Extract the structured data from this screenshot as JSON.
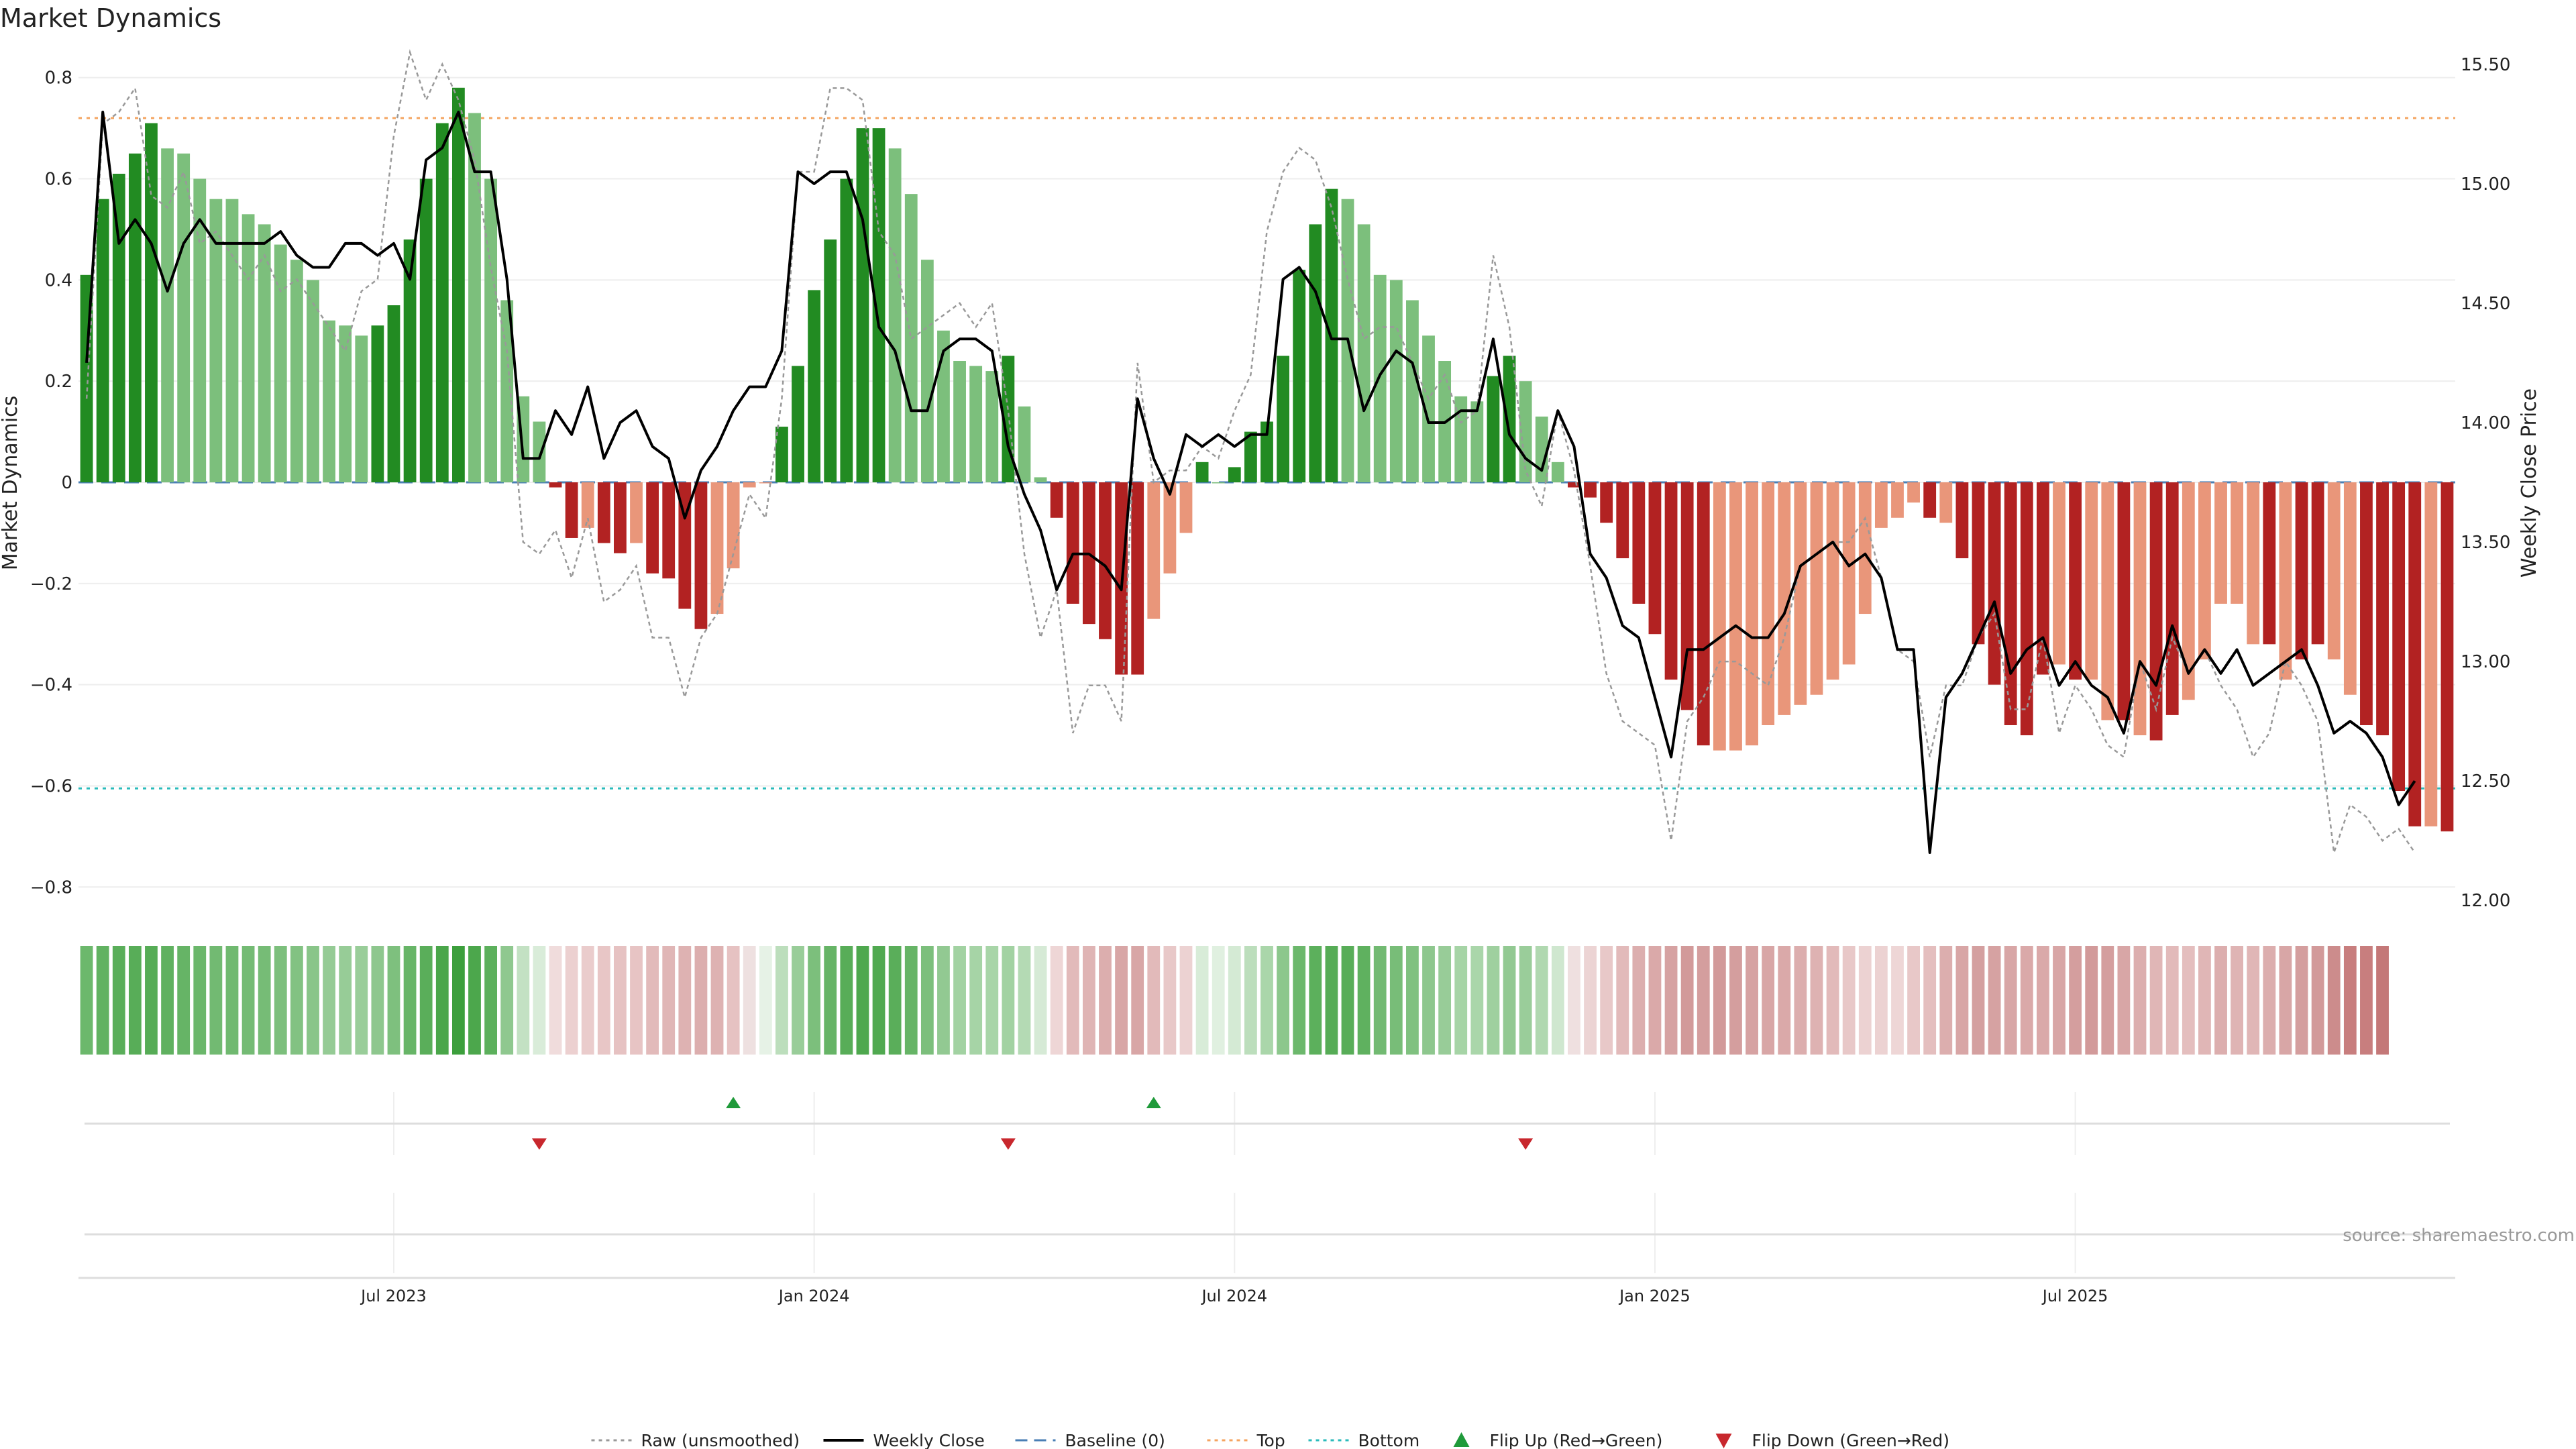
{
  "chart_data": {
    "type": "bar",
    "title": "Market Dynamics",
    "ylabel": "Market Dynamics",
    "y2label": "Weekly Close Price",
    "ylim": [
      -0.85,
      0.85
    ],
    "y2lim": [
      11.95,
      15.55
    ],
    "yticks": [
      {
        "v": 0.8,
        "t": "0.8"
      },
      {
        "v": 0.6,
        "t": "0.6"
      },
      {
        "v": 0.4,
        "t": "0.4"
      },
      {
        "v": 0.2,
        "t": "0.2"
      },
      {
        "v": 0,
        "t": "0"
      },
      {
        "v": -0.2,
        "t": "−0.2"
      },
      {
        "v": -0.4,
        "t": "−0.4"
      },
      {
        "v": -0.6,
        "t": "−0.6"
      },
      {
        "v": -0.8,
        "t": "−0.8"
      }
    ],
    "y2ticks": [
      {
        "v": 15.5,
        "t": "15.50"
      },
      {
        "v": 15.0,
        "t": "15.00"
      },
      {
        "v": 14.5,
        "t": "14.50"
      },
      {
        "v": 14.0,
        "t": "14.00"
      },
      {
        "v": 13.5,
        "t": "13.50"
      },
      {
        "v": 13.0,
        "t": "13.00"
      },
      {
        "v": 12.5,
        "t": "12.50"
      },
      {
        "v": 12.0,
        "t": "12.00"
      }
    ],
    "xticks": [
      {
        "i": 19.5,
        "t": "Jul 2023"
      },
      {
        "i": 45.5,
        "t": "Jan 2024"
      },
      {
        "i": 71.5,
        "t": "Jul 2024"
      },
      {
        "i": 97.5,
        "t": "Jan 2025"
      },
      {
        "i": 123.5,
        "t": "Jul 2025"
      }
    ],
    "top_level": 0.72,
    "bottom_level": -0.605,
    "baseline": 0,
    "momentum": [
      0.41,
      0.56,
      0.61,
      0.65,
      0.71,
      0.66,
      0.65,
      0.6,
      0.56,
      0.56,
      0.53,
      0.51,
      0.47,
      0.44,
      0.4,
      0.32,
      0.31,
      0.29,
      0.31,
      0.35,
      0.48,
      0.6,
      0.71,
      0.78,
      0.73,
      0.6,
      0.36,
      0.17,
      0.12,
      -0.01,
      -0.11,
      -0.09,
      -0.12,
      -0.14,
      -0.12,
      -0.18,
      -0.19,
      -0.25,
      -0.29,
      -0.26,
      -0.17,
      -0.01,
      0.0,
      0.11,
      0.23,
      0.38,
      0.48,
      0.6,
      0.7,
      0.7,
      0.66,
      0.57,
      0.44,
      0.3,
      0.24,
      0.23,
      0.22,
      0.25,
      0.15,
      0.01,
      -0.07,
      -0.24,
      -0.28,
      -0.31,
      -0.38,
      -0.38,
      -0.27,
      -0.18,
      -0.1,
      0.04,
      0.0,
      0.03,
      0.1,
      0.12,
      0.25,
      0.42,
      0.51,
      0.58,
      0.56,
      0.51,
      0.41,
      0.4,
      0.36,
      0.29,
      0.24,
      0.17,
      0.16,
      0.21,
      0.25,
      0.2,
      0.13,
      0.04,
      -0.01,
      -0.03,
      -0.08,
      -0.15,
      -0.24,
      -0.3,
      -0.39,
      -0.45,
      -0.52,
      -0.53,
      -0.53,
      -0.52,
      -0.48,
      -0.46,
      -0.44,
      -0.42,
      -0.39,
      -0.36,
      -0.26,
      -0.09,
      -0.07,
      -0.04,
      -0.07,
      -0.08,
      -0.15,
      -0.32,
      -0.4,
      -0.48,
      -0.5,
      -0.38,
      -0.36,
      -0.39,
      -0.39,
      -0.47,
      -0.47,
      -0.5,
      -0.51,
      -0.46,
      -0.43,
      -0.35,
      -0.24,
      -0.24,
      -0.32,
      -0.32,
      -0.39,
      -0.35,
      -0.32,
      -0.35,
      -0.42,
      -0.48,
      -0.5,
      -0.61,
      -0.68,
      -0.68,
      -0.69
    ],
    "colors": [
      "#228b22",
      "#228b22",
      "#228b22",
      "#228b22",
      "#228b22",
      "#7cbf7c",
      "#7cbf7c",
      "#7cbf7c",
      "#7cbf7c",
      "#7cbf7c",
      "#7cbf7c",
      "#7cbf7c",
      "#7cbf7c",
      "#7cbf7c",
      "#7cbf7c",
      "#7cbf7c",
      "#7cbf7c",
      "#7cbf7c",
      "#228b22",
      "#228b22",
      "#228b22",
      "#228b22",
      "#228b22",
      "#228b22",
      "#7cbf7c",
      "#7cbf7c",
      "#7cbf7c",
      "#7cbf7c",
      "#7cbf7c",
      "#b22222",
      "#b22222",
      "#e9967a",
      "#b22222",
      "#b22222",
      "#e9967a",
      "#b22222",
      "#b22222",
      "#b22222",
      "#b22222",
      "#e9967a",
      "#e9967a",
      "#e9967a",
      "#e9967a",
      "#228b22",
      "#228b22",
      "#228b22",
      "#228b22",
      "#228b22",
      "#228b22",
      "#228b22",
      "#7cbf7c",
      "#7cbf7c",
      "#7cbf7c",
      "#7cbf7c",
      "#7cbf7c",
      "#7cbf7c",
      "#7cbf7c",
      "#228b22",
      "#7cbf7c",
      "#7cbf7c",
      "#b22222",
      "#b22222",
      "#b22222",
      "#b22222",
      "#b22222",
      "#b22222",
      "#e9967a",
      "#e9967a",
      "#e9967a",
      "#228b22",
      "#7cbf7c",
      "#228b22",
      "#228b22",
      "#228b22",
      "#228b22",
      "#228b22",
      "#228b22",
      "#228b22",
      "#7cbf7c",
      "#7cbf7c",
      "#7cbf7c",
      "#7cbf7c",
      "#7cbf7c",
      "#7cbf7c",
      "#7cbf7c",
      "#7cbf7c",
      "#7cbf7c",
      "#228b22",
      "#228b22",
      "#7cbf7c",
      "#7cbf7c",
      "#7cbf7c",
      "#b22222",
      "#b22222",
      "#b22222",
      "#b22222",
      "#b22222",
      "#b22222",
      "#b22222",
      "#b22222",
      "#b22222",
      "#e9967a",
      "#e9967a",
      "#e9967a",
      "#e9967a",
      "#e9967a",
      "#e9967a",
      "#e9967a",
      "#e9967a",
      "#e9967a",
      "#e9967a",
      "#e9967a",
      "#e9967a",
      "#e9967a",
      "#b22222",
      "#e9967a",
      "#b22222",
      "#b22222",
      "#b22222",
      "#b22222",
      "#b22222",
      "#b22222",
      "#e9967a",
      "#b22222",
      "#e9967a",
      "#e9967a",
      "#b22222",
      "#e9967a",
      "#b22222",
      "#b22222",
      "#e9967a",
      "#e9967a",
      "#e9967a",
      "#e9967a",
      "#e9967a",
      "#b22222",
      "#e9967a",
      "#b22222",
      "#b22222",
      "#e9967a",
      "#e9967a",
      "#b22222",
      "#b22222",
      "#b22222",
      "#b22222",
      "#e9967a",
      "#b22222"
    ],
    "weekly_close": [
      14.25,
      15.3,
      14.75,
      14.85,
      14.75,
      14.55,
      14.75,
      14.85,
      14.75,
      14.75,
      14.75,
      14.75,
      14.8,
      14.7,
      14.65,
      14.65,
      14.75,
      14.75,
      14.7,
      14.75,
      14.6,
      15.1,
      15.15,
      15.3,
      15.05,
      15.05,
      14.6,
      13.85,
      13.85,
      14.05,
      13.95,
      14.15,
      13.85,
      14.0,
      14.05,
      13.9,
      13.85,
      13.6,
      13.8,
      13.9,
      14.05,
      14.15,
      14.15,
      14.3,
      15.05,
      15.0,
      15.05,
      15.05,
      14.85,
      14.4,
      14.3,
      14.05,
      14.05,
      14.3,
      14.35,
      14.35,
      14.3,
      13.9,
      13.7,
      13.55,
      13.3,
      13.45,
      13.45,
      13.4,
      13.3,
      14.1,
      13.85,
      13.7,
      13.95,
      13.9,
      13.95,
      13.9,
      13.95,
      13.95,
      14.6,
      14.65,
      14.55,
      14.35,
      14.35,
      14.05,
      14.2,
      14.3,
      14.25,
      14.0,
      14.0,
      14.05,
      14.05,
      14.35,
      13.95,
      13.85,
      13.8,
      14.05,
      13.9,
      13.45,
      13.35,
      13.15,
      13.1,
      12.85,
      12.6,
      13.05,
      13.05,
      13.1,
      13.15,
      13.1,
      13.1,
      13.2,
      13.4,
      13.45,
      13.5,
      13.4,
      13.45,
      13.35,
      13.05,
      13.05,
      12.2,
      12.85,
      12.95,
      13.1,
      13.25,
      12.95,
      13.05,
      13.1,
      12.9,
      13.0,
      12.9,
      12.85,
      12.7,
      13.0,
      12.9,
      13.15,
      12.95,
      13.05,
      12.95,
      13.05,
      12.9,
      12.95,
      13.0,
      13.05,
      12.9,
      12.7,
      12.75,
      12.7,
      12.6,
      12.4,
      12.5
    ],
    "raw": [
      14.1,
      15.25,
      15.3,
      15.4,
      14.95,
      14.9,
      15.05,
      14.75,
      14.8,
      14.7,
      14.6,
      14.7,
      14.55,
      14.6,
      14.5,
      14.4,
      14.3,
      14.55,
      14.6,
      15.2,
      15.55,
      15.35,
      15.5,
      15.35,
      15.1,
      14.65,
      14.3,
      13.5,
      13.45,
      13.55,
      13.35,
      13.6,
      13.25,
      13.3,
      13.4,
      13.1,
      13.1,
      12.85,
      13.1,
      13.2,
      13.45,
      13.7,
      13.6,
      14.1,
      15.05,
      15.05,
      15.4,
      15.4,
      15.35,
      14.8,
      14.7,
      14.35,
      14.4,
      14.45,
      14.5,
      14.4,
      14.5,
      14.05,
      13.45,
      13.1,
      13.3,
      12.7,
      12.9,
      12.9,
      12.75,
      14.25,
      13.75,
      13.8,
      13.8,
      13.9,
      13.85,
      14.05,
      14.2,
      14.8,
      15.05,
      15.15,
      15.1,
      14.9,
      14.6,
      14.35,
      14.4,
      14.4,
      14.25,
      14.1,
      14.2,
      14.0,
      14.05,
      14.7,
      14.4,
      13.8,
      13.65,
      14.05,
      13.8,
      13.4,
      12.95,
      12.75,
      12.7,
      12.65,
      12.25,
      12.75,
      12.85,
      13.0,
      13.0,
      12.95,
      12.9,
      13.1,
      13.4,
      13.45,
      13.5,
      13.5,
      13.6,
      13.35,
      13.05,
      13.0,
      12.6,
      12.9,
      12.9,
      13.1,
      13.2,
      12.8,
      12.8,
      13.1,
      12.7,
      12.9,
      12.8,
      12.65,
      12.6,
      13.0,
      12.8,
      13.1,
      12.95,
      13.05,
      12.9,
      12.8,
      12.6,
      12.7,
      13.0,
      12.9,
      12.75,
      12.2,
      12.4,
      12.35,
      12.25,
      12.3,
      12.2
    ],
    "heat_colors": [
      "#6cb86c",
      "#61b261",
      "#5aae5a",
      "#58ad58",
      "#56ac56",
      "#60b160",
      "#66b466",
      "#6bb76b",
      "#72ba72",
      "#70b970",
      "#74bb74",
      "#76bc76",
      "#7cbf7c",
      "#82c282",
      "#89c589",
      "#95cb95",
      "#97cc97",
      "#99cd99",
      "#8ec78e",
      "#7ec07e",
      "#67b567",
      "#5aae5a",
      "#4aa64a",
      "#3c9f3c",
      "#4ca74c",
      "#5cb05c",
      "#8fc88f",
      "#c3e1c3",
      "#d9ecd9",
      "#f0dcdc",
      "#ecd0d0",
      "#eacccc",
      "#e8c6c6",
      "#e6c2c2",
      "#e7c4c4",
      "#e2baba",
      "#e0b6b6",
      "#deb2b2",
      "#dcaeae",
      "#deb2b2",
      "#e6c2c2",
      "#eee0e0",
      "#e6f2e6",
      "#bcdebc",
      "#99cd99",
      "#7cbf7c",
      "#66b466",
      "#58ad58",
      "#4ea84e",
      "#50a950",
      "#5aae5a",
      "#66b466",
      "#7cbf7c",
      "#92c992",
      "#a2d2a2",
      "#a6d4a6",
      "#a8d5a8",
      "#a2d2a2",
      "#b4dab4",
      "#d6ead6",
      "#eed6d6",
      "#e2baba",
      "#dfb4b4",
      "#dcaeae",
      "#d8a6a6",
      "#d8a6a6",
      "#e2baba",
      "#e8c8c8",
      "#ecd2d2",
      "#d8ecd8",
      "#e0f0e0",
      "#d4ead4",
      "#bcdebc",
      "#aad6aa",
      "#8cc78c",
      "#6cb86c",
      "#5cb05c",
      "#56ac56",
      "#58ad58",
      "#5fb15f",
      "#72ba72",
      "#78bd78",
      "#80c180",
      "#8ec78e",
      "#98cc98",
      "#a6d4a6",
      "#aad6aa",
      "#9fd09f",
      "#92c992",
      "#9acd9a",
      "#b0d8b0",
      "#cfe7cf",
      "#efe0e0",
      "#ecd4d4",
      "#e8c8c8",
      "#e2baba",
      "#dcaeae",
      "#daa9a9",
      "#d6a2a2",
      "#d29a9a",
      "#d49e9e",
      "#d29a9a",
      "#d49e9e",
      "#d6a2a2",
      "#d8a6a6",
      "#daa9a9",
      "#dcaeae",
      "#deb2b2",
      "#e2baba",
      "#e8c8c8",
      "#ecd2d2",
      "#ecd2d2",
      "#eed6d6",
      "#e8c8c8",
      "#e4bebe",
      "#dcaeae",
      "#d8a6a6",
      "#d4a0a0",
      "#d6a2a2",
      "#d8a6a6",
      "#daa9a9",
      "#daa9a9",
      "#d8a6a6",
      "#d49e9e",
      "#d29a9a",
      "#d49e9e",
      "#d8a6a6",
      "#dcaeae",
      "#e0b6b6",
      "#e2baba",
      "#e4bebe",
      "#e0b6b6",
      "#dcaeae",
      "#dfb4b4",
      "#e0b6b6",
      "#dcaeae",
      "#d8a6a6",
      "#d49e9e",
      "#d29a9a",
      "#cc8c8c",
      "#c87e7e",
      "#c87e7e",
      "#c47878"
    ],
    "flips_up": [
      40.5,
      66.5
    ],
    "flips_down": [
      28.5,
      57.5,
      89.5
    ],
    "legend": [
      {
        "label": "Raw (unsmoothed)",
        "kind": "dotted",
        "color": "#999999"
      },
      {
        "label": "Weekly Close",
        "kind": "solid",
        "color": "#000000"
      },
      {
        "label": "Baseline (0)",
        "kind": "dashed",
        "color": "#4a7fb5"
      },
      {
        "label": "Top",
        "kind": "dotted",
        "color": "#f4a460"
      },
      {
        "label": "Bottom",
        "kind": "dotted",
        "color": "#2bbbbb"
      },
      {
        "label": "Flip Up (Red→Green)",
        "kind": "tri-up",
        "color": "#1f9a3a"
      },
      {
        "label": "Flip Down (Green→Red)",
        "kind": "tri-down",
        "color": "#c8272d"
      }
    ],
    "source": "source: sharemaestro.com"
  }
}
